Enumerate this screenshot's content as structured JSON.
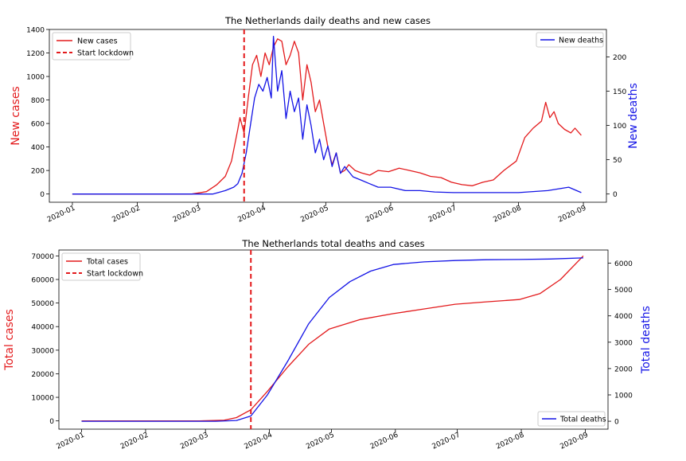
{
  "chart_data": [
    {
      "type": "line",
      "title": "The Netherlands daily deaths and new cases",
      "xlabel": "",
      "ylabel_left": "New cases",
      "ylabel_right": "New deaths",
      "x_ticks": [
        "2020-01",
        "2020-02",
        "2020-03",
        "2020-04",
        "2020-05",
        "2020-06",
        "2020-07",
        "2020-08",
        "2020-09"
      ],
      "ylim_left": [
        -70,
        1400
      ],
      "yticks_left": [
        0,
        200,
        400,
        600,
        800,
        1000,
        1200,
        1400
      ],
      "ylim_right": [
        -12,
        240
      ],
      "yticks_right": [
        0,
        50,
        100,
        150,
        200
      ],
      "lockdown_date": "2020-03-23",
      "grid": false,
      "legend_left": "top-left",
      "legend_right": "top-right",
      "legend_left_entries": [
        "New cases",
        "Start lockdown"
      ],
      "legend_right_entries": [
        "New deaths"
      ],
      "colors": {
        "cases": "#e31a1c",
        "deaths": "#1414e6",
        "lockdown": "#e31a1c"
      },
      "series": [
        {
          "name": "New cases",
          "axis": "left",
          "color": "#e31a1c",
          "points": [
            [
              "2020-01-01",
              0
            ],
            [
              "2020-02-27",
              0
            ],
            [
              "2020-03-05",
              20
            ],
            [
              "2020-03-10",
              80
            ],
            [
              "2020-03-14",
              150
            ],
            [
              "2020-03-17",
              280
            ],
            [
              "2020-03-20",
              550
            ],
            [
              "2020-03-21",
              650
            ],
            [
              "2020-03-23",
              520
            ],
            [
              "2020-03-25",
              820
            ],
            [
              "2020-03-27",
              1100
            ],
            [
              "2020-03-29",
              1180
            ],
            [
              "2020-03-31",
              1000
            ],
            [
              "2020-04-02",
              1200
            ],
            [
              "2020-04-04",
              1100
            ],
            [
              "2020-04-06",
              1250
            ],
            [
              "2020-04-08",
              1320
            ],
            [
              "2020-04-10",
              1300
            ],
            [
              "2020-04-12",
              1100
            ],
            [
              "2020-04-14",
              1180
            ],
            [
              "2020-04-16",
              1300
            ],
            [
              "2020-04-18",
              1200
            ],
            [
              "2020-04-20",
              800
            ],
            [
              "2020-04-22",
              1100
            ],
            [
              "2020-04-24",
              950
            ],
            [
              "2020-04-26",
              700
            ],
            [
              "2020-04-28",
              800
            ],
            [
              "2020-04-30",
              600
            ],
            [
              "2020-05-02",
              400
            ],
            [
              "2020-05-04",
              250
            ],
            [
              "2020-05-06",
              350
            ],
            [
              "2020-05-08",
              180
            ],
            [
              "2020-05-10",
              200
            ],
            [
              "2020-05-12",
              250
            ],
            [
              "2020-05-15",
              200
            ],
            [
              "2020-05-18",
              180
            ],
            [
              "2020-05-22",
              160
            ],
            [
              "2020-05-26",
              200
            ],
            [
              "2020-05-31",
              190
            ],
            [
              "2020-06-05",
              220
            ],
            [
              "2020-06-10",
              200
            ],
            [
              "2020-06-15",
              180
            ],
            [
              "2020-06-20",
              150
            ],
            [
              "2020-06-25",
              140
            ],
            [
              "2020-06-30",
              100
            ],
            [
              "2020-07-05",
              80
            ],
            [
              "2020-07-10",
              70
            ],
            [
              "2020-07-15",
              100
            ],
            [
              "2020-07-20",
              120
            ],
            [
              "2020-07-25",
              200
            ],
            [
              "2020-07-31",
              280
            ],
            [
              "2020-08-04",
              480
            ],
            [
              "2020-08-08",
              560
            ],
            [
              "2020-08-12",
              620
            ],
            [
              "2020-08-14",
              780
            ],
            [
              "2020-08-16",
              650
            ],
            [
              "2020-08-18",
              700
            ],
            [
              "2020-08-20",
              600
            ],
            [
              "2020-08-23",
              550
            ],
            [
              "2020-08-26",
              520
            ],
            [
              "2020-08-28",
              560
            ],
            [
              "2020-08-31",
              500
            ]
          ]
        },
        {
          "name": "New deaths",
          "axis": "right",
          "color": "#1414e6",
          "points": [
            [
              "2020-01-01",
              0
            ],
            [
              "2020-03-08",
              0
            ],
            [
              "2020-03-14",
              5
            ],
            [
              "2020-03-18",
              10
            ],
            [
              "2020-03-20",
              15
            ],
            [
              "2020-03-22",
              30
            ],
            [
              "2020-03-24",
              60
            ],
            [
              "2020-03-26",
              100
            ],
            [
              "2020-03-28",
              140
            ],
            [
              "2020-03-30",
              160
            ],
            [
              "2020-04-01",
              150
            ],
            [
              "2020-04-03",
              170
            ],
            [
              "2020-04-05",
              140
            ],
            [
              "2020-04-06",
              230
            ],
            [
              "2020-04-08",
              150
            ],
            [
              "2020-04-10",
              180
            ],
            [
              "2020-04-12",
              110
            ],
            [
              "2020-04-14",
              150
            ],
            [
              "2020-04-16",
              120
            ],
            [
              "2020-04-18",
              140
            ],
            [
              "2020-04-20",
              80
            ],
            [
              "2020-04-22",
              130
            ],
            [
              "2020-04-24",
              100
            ],
            [
              "2020-04-26",
              60
            ],
            [
              "2020-04-28",
              80
            ],
            [
              "2020-04-30",
              50
            ],
            [
              "2020-05-02",
              70
            ],
            [
              "2020-05-04",
              40
            ],
            [
              "2020-05-06",
              60
            ],
            [
              "2020-05-08",
              30
            ],
            [
              "2020-05-10",
              40
            ],
            [
              "2020-05-14",
              25
            ],
            [
              "2020-05-18",
              20
            ],
            [
              "2020-05-22",
              15
            ],
            [
              "2020-05-26",
              10
            ],
            [
              "2020-06-01",
              10
            ],
            [
              "2020-06-08",
              5
            ],
            [
              "2020-06-15",
              5
            ],
            [
              "2020-06-22",
              3
            ],
            [
              "2020-07-01",
              2
            ],
            [
              "2020-07-15",
              2
            ],
            [
              "2020-08-01",
              2
            ],
            [
              "2020-08-15",
              5
            ],
            [
              "2020-08-25",
              10
            ],
            [
              "2020-08-31",
              2
            ]
          ]
        }
      ]
    },
    {
      "type": "line",
      "title": "The Netherlands total deaths and  cases",
      "xlabel": "",
      "ylabel_left": "Total cases",
      "ylabel_right": "Total deaths",
      "x_ticks": [
        "2020-01",
        "2020-02",
        "2020-03",
        "2020-04",
        "2020-05",
        "2020-06",
        "2020-07",
        "2020-08",
        "2020-09"
      ],
      "ylim_left": [
        -3500,
        72500
      ],
      "yticks_left": [
        0,
        10000,
        20000,
        30000,
        40000,
        50000,
        60000,
        70000
      ],
      "ylim_right": [
        -300,
        6500
      ],
      "yticks_right": [
        0,
        1000,
        2000,
        3000,
        4000,
        5000,
        6000
      ],
      "lockdown_date": "2020-03-23",
      "grid": false,
      "legend_left": "top-left",
      "legend_right": "bottom-right",
      "legend_left_entries": [
        "Total cases",
        "Start lockdown"
      ],
      "legend_right_entries": [
        "Total deaths"
      ],
      "colors": {
        "cases": "#e31a1c",
        "deaths": "#1414e6",
        "lockdown": "#e31a1c"
      },
      "series": [
        {
          "name": "Total cases",
          "axis": "left",
          "color": "#e31a1c",
          "points": [
            [
              "2020-01-01",
              0
            ],
            [
              "2020-02-27",
              0
            ],
            [
              "2020-03-10",
              300
            ],
            [
              "2020-03-16",
              1400
            ],
            [
              "2020-03-23",
              4700
            ],
            [
              "2020-03-31",
              12500
            ],
            [
              "2020-04-10",
              23000
            ],
            [
              "2020-04-20",
              32500
            ],
            [
              "2020-04-30",
              39000
            ],
            [
              "2020-05-15",
              43000
            ],
            [
              "2020-05-31",
              45500
            ],
            [
              "2020-06-15",
              47500
            ],
            [
              "2020-06-30",
              49500
            ],
            [
              "2020-07-15",
              50500
            ],
            [
              "2020-07-31",
              51500
            ],
            [
              "2020-08-10",
              54000
            ],
            [
              "2020-08-20",
              60000
            ],
            [
              "2020-08-31",
              70000
            ]
          ]
        },
        {
          "name": "Total deaths",
          "axis": "right",
          "color": "#1414e6",
          "points": [
            [
              "2020-01-01",
              0
            ],
            [
              "2020-03-06",
              0
            ],
            [
              "2020-03-16",
              30
            ],
            [
              "2020-03-23",
              200
            ],
            [
              "2020-03-31",
              1000
            ],
            [
              "2020-04-10",
              2300
            ],
            [
              "2020-04-20",
              3700
            ],
            [
              "2020-04-30",
              4700
            ],
            [
              "2020-05-10",
              5300
            ],
            [
              "2020-05-20",
              5700
            ],
            [
              "2020-05-31",
              5950
            ],
            [
              "2020-06-15",
              6050
            ],
            [
              "2020-06-30",
              6100
            ],
            [
              "2020-07-15",
              6130
            ],
            [
              "2020-07-31",
              6140
            ],
            [
              "2020-08-15",
              6160
            ],
            [
              "2020-08-31",
              6200
            ]
          ]
        }
      ]
    }
  ]
}
